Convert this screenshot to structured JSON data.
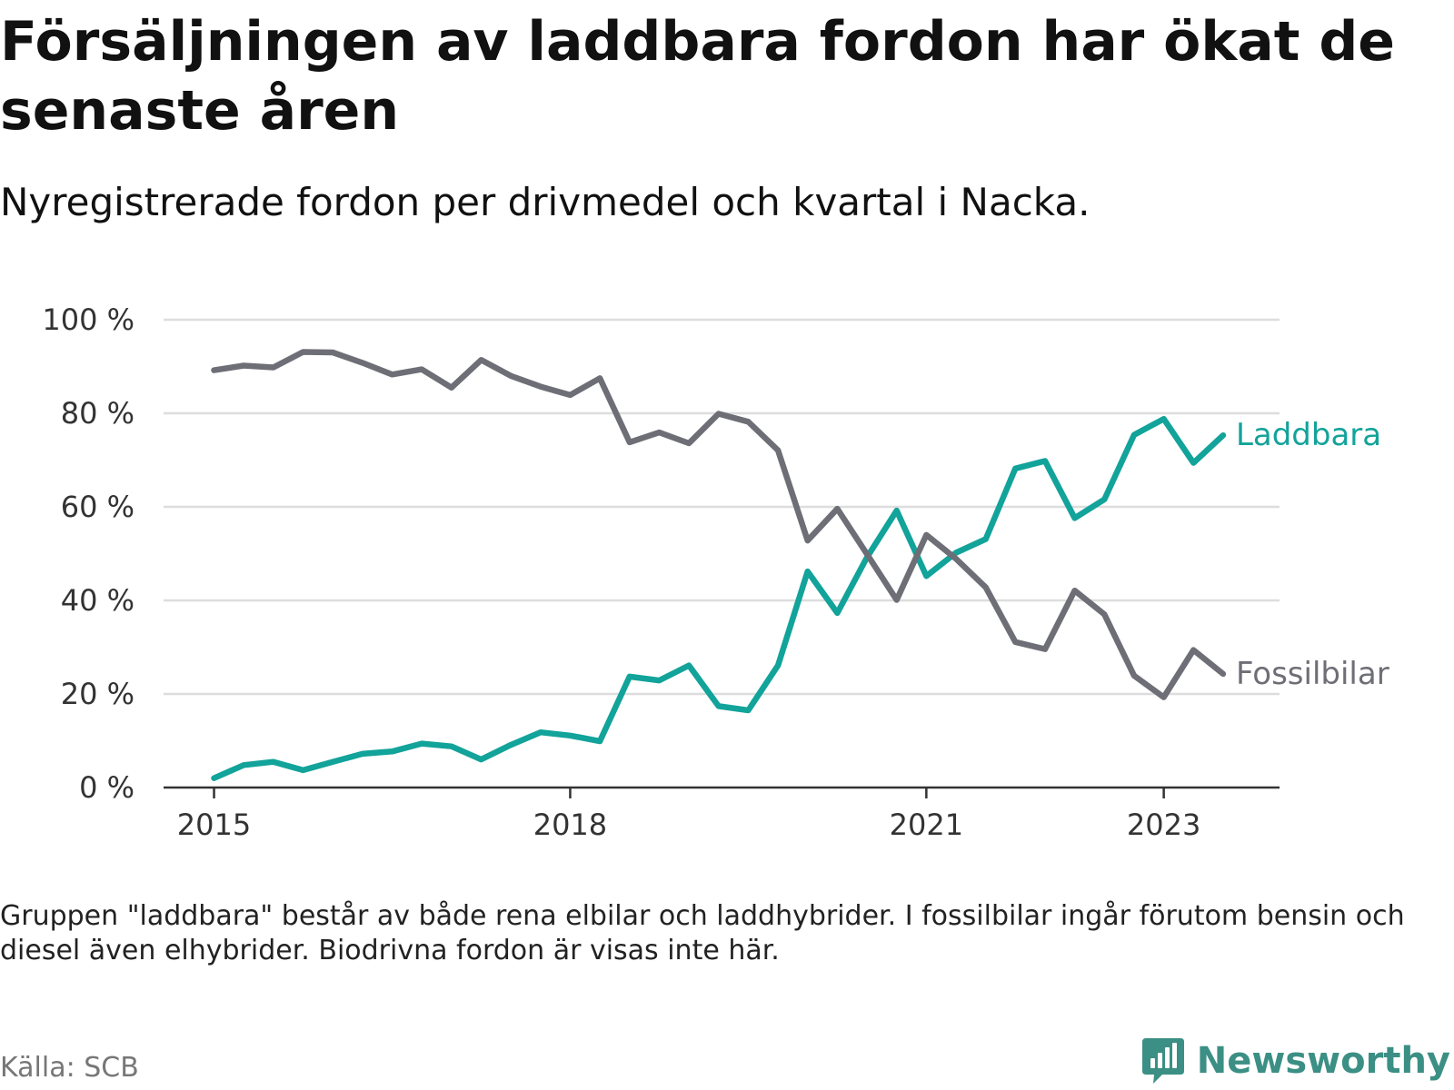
{
  "header": {
    "title": "Försäljningen av laddbara fordon har ökat de senaste åren",
    "subtitle": "Nyregistrerade fordon per drivmedel och kvartal i Nacka."
  },
  "footer": {
    "note": "Gruppen \"laddbara\" består av både rena elbilar och laddhybrider. I fossilbilar ingår förutom bensin och diesel även elhybrider. Biodrivna fordon är visas inte här.",
    "source": "Källa: SCB",
    "brand": "Newsworthy"
  },
  "colors": {
    "laddbara": "#12a39a",
    "fossilbilar": "#6e6e76",
    "grid": "#dddddd",
    "axis": "#333333",
    "tick_label": "#333333",
    "brand": "#3b8f84"
  },
  "chart_data": {
    "type": "line",
    "title": "Försäljningen av laddbara fordon har ökat de senaste åren",
    "subtitle": "Nyregistrerade fordon per drivmedel och kvartal i Nacka.",
    "xlabel": "",
    "ylabel": "",
    "x_unit": "quarter",
    "x": [
      0,
      1,
      2,
      3,
      4,
      5,
      6,
      7,
      8,
      9,
      10,
      11,
      12,
      13,
      14,
      15,
      16,
      17,
      18,
      19,
      20,
      21,
      22,
      23,
      24,
      25,
      26,
      27,
      28,
      29,
      30,
      31,
      32,
      33,
      34
    ],
    "x_start": "2015 Q1",
    "xlim": [
      -1.7,
      35.9
    ],
    "x_ticks": [
      {
        "x": 0,
        "label": "2015"
      },
      {
        "x": 12,
        "label": "2018"
      },
      {
        "x": 24,
        "label": "2021"
      },
      {
        "x": 32,
        "label": "2023"
      }
    ],
    "ylim": [
      0,
      100
    ],
    "y_ticks": [
      0,
      20,
      40,
      60,
      80,
      100
    ],
    "y_tick_labels": [
      "0 %",
      "20 %",
      "40 %",
      "60 %",
      "80 %",
      "100 %"
    ],
    "grid": true,
    "series": [
      {
        "name": "Laddbara",
        "color": "#12a39a",
        "values": [
          2,
          4.8,
          5.5,
          3.7,
          5.5,
          7.2,
          7.7,
          9.4,
          8.8,
          6,
          9.1,
          11.8,
          11.1,
          9.9,
          23.7,
          22.9,
          26.1,
          17.4,
          16.5,
          26.1,
          46.2,
          37.3,
          49.2,
          59.2,
          45.2,
          50.2,
          53.1,
          68.2,
          69.8,
          57.6,
          61.6,
          75.4,
          78.8,
          69.4,
          75.3
        ]
      },
      {
        "name": "Fossilbilar",
        "color": "#6e6e76",
        "values": [
          89.2,
          90.2,
          89.8,
          93.1,
          93,
          90.8,
          88.3,
          89.4,
          85.5,
          91.4,
          88,
          85.7,
          83.9,
          87.5,
          73.8,
          75.9,
          73.6,
          79.9,
          78.2,
          72.1,
          52.8,
          59.6,
          49.9,
          40.1,
          54,
          48.9,
          42.8,
          31.1,
          29.6,
          42.1,
          37,
          23.9,
          19.3,
          29.4,
          24.3
        ]
      }
    ],
    "series_labels": [
      "Laddbara",
      "Fossilbilar"
    ],
    "legend": "direct labels at line ends"
  }
}
